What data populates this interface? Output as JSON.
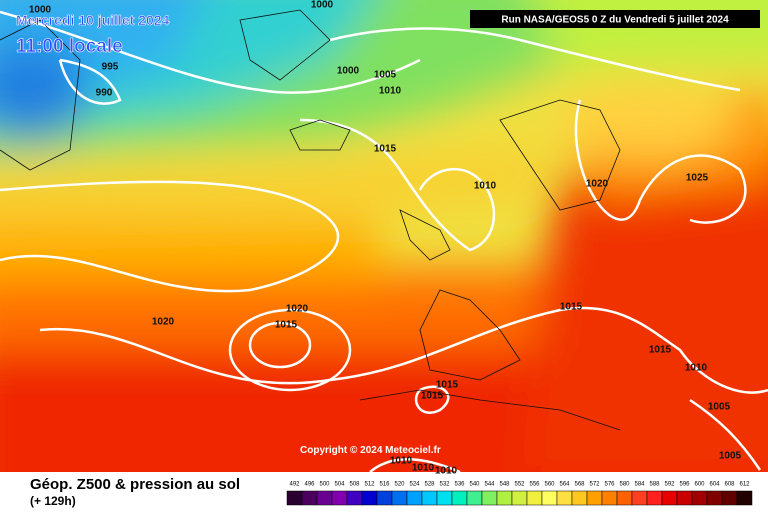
{
  "header": {
    "date": "Mercredi 10 juillet 2024",
    "time": "11:00 locale",
    "run": "Run NASA/GEOS5 0 Z du Vendredi 5 juillet 2024"
  },
  "copyright": "Copyright © 2024 Meteociel.fr",
  "isobar_labels": [
    "1000",
    "1000",
    "995",
    "990",
    "1000",
    "1005",
    "1010",
    "1015",
    "1010",
    "1020",
    "1025",
    "1020",
    "1015",
    "1020",
    "1015",
    "1015",
    "1010",
    "1015",
    "1015",
    "1005",
    "1005",
    "1010",
    "1010",
    "1010"
  ],
  "footer": {
    "title": "Géop. Z500 & pression au sol",
    "lead": "(+ 129h)"
  },
  "legend": {
    "values": [
      492,
      496,
      500,
      504,
      508,
      512,
      516,
      520,
      524,
      528,
      532,
      536,
      540,
      544,
      548,
      552,
      556,
      560,
      564,
      568,
      572,
      576,
      580,
      584,
      588,
      592,
      596,
      600,
      604,
      608,
      612
    ],
    "colors": [
      "#2a0030",
      "#4b0060",
      "#6a0090",
      "#8000b0",
      "#4000c0",
      "#0000d0",
      "#0040e0",
      "#0070f0",
      "#00a0ff",
      "#00c8ff",
      "#00e0f0",
      "#00f0c0",
      "#40f090",
      "#80f060",
      "#b0f040",
      "#d0f040",
      "#f0f040",
      "#ffff60",
      "#ffe040",
      "#ffc820",
      "#ffa000",
      "#ff8000",
      "#ff6000",
      "#ff4020",
      "#ff2020",
      "#e80000",
      "#c80000",
      "#a00000",
      "#800000",
      "#600000",
      "#200000"
    ]
  }
}
